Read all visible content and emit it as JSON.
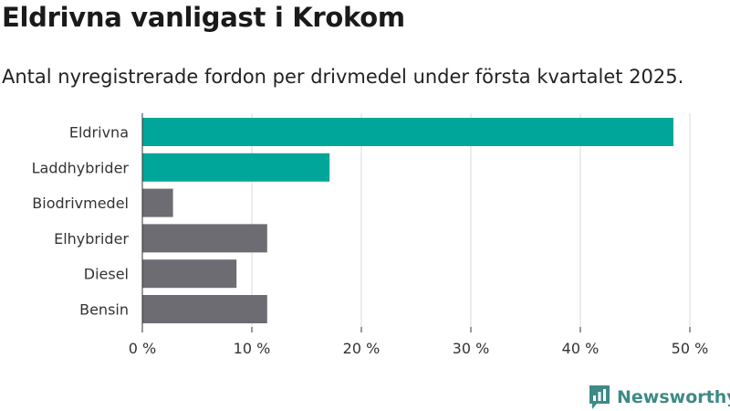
{
  "colors": {
    "highlight": "#00a69a",
    "base": "#6d6c72",
    "grid": "#d9d9d9",
    "brand": "#3d8a86"
  },
  "brand": {
    "name": "Newsworthy"
  },
  "chart_data": {
    "type": "bar",
    "orientation": "horizontal",
    "title": "Eldrivna vanligast i Krokom",
    "subtitle": "Antal nyregistrerade fordon per drivmedel under första kvartalet 2025.",
    "categories": [
      "Eldrivna",
      "Laddhybrider",
      "Biodrivmedel",
      "Elhybrider",
      "Diesel",
      "Bensin"
    ],
    "values": [
      48.5,
      17.1,
      2.8,
      11.4,
      8.6,
      11.4
    ],
    "highlighted": [
      true,
      true,
      false,
      false,
      false,
      false
    ],
    "xlim": [
      0,
      50
    ],
    "xticks": [
      0,
      10,
      20,
      30,
      40,
      50
    ],
    "xtick_labels": [
      "0 %",
      "10 %",
      "20 %",
      "30 %",
      "40 %",
      "50 %"
    ],
    "grid": true,
    "legend": "none"
  }
}
